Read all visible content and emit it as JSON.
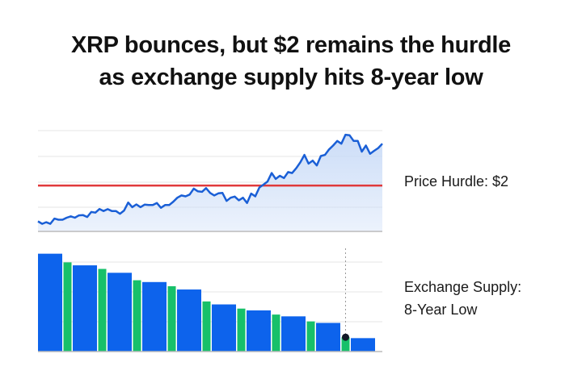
{
  "title_lines": [
    "XRP bounces, but $2 remains the hurdle",
    "as exchange supply hits 8-year low"
  ],
  "labels": {
    "price": "Price Hurdle: $2",
    "supply_line1": "Exchange Supply:",
    "supply_line2": "8-Year Low"
  },
  "colors": {
    "line": "#1a5fd6",
    "area": "#c9dbf7",
    "hurdle": "#e0393b",
    "bar_blue": "#0d63ec",
    "bar_green": "#17c06a",
    "marker": "#111827",
    "grid": "#e6e6e6"
  },
  "chart_data": [
    {
      "type": "line",
      "title": "",
      "xlabel": "",
      "ylabel": "",
      "ylim": [
        0,
        4.4
      ],
      "grid": true,
      "hurdle": 2,
      "values": [
        0.44,
        0.33,
        0.4,
        0.33,
        0.56,
        0.51,
        0.51,
        0.6,
        0.66,
        0.6,
        0.7,
        0.71,
        0.63,
        0.85,
        0.82,
        0.98,
        0.89,
        0.97,
        0.89,
        0.89,
        0.77,
        0.91,
        1.26,
        1.06,
        1.18,
        1.06,
        1.17,
        1.15,
        1.15,
        1.24,
        1.03,
        1.15,
        1.15,
        1.3,
        1.47,
        1.57,
        1.53,
        1.61,
        1.87,
        1.75,
        1.73,
        1.89,
        1.68,
        1.57,
        1.66,
        1.68,
        1.33,
        1.47,
        1.52,
        1.36,
        1.47,
        1.24,
        1.65,
        1.53,
        1.92,
        2.04,
        2.18,
        2.55,
        2.29,
        2.43,
        2.33,
        2.59,
        2.55,
        2.76,
        3.02,
        3.34,
        2.96,
        3.09,
        2.88,
        3.29,
        3.34,
        3.58,
        3.75,
        3.95,
        3.83,
        4.22,
        4.2,
        3.95,
        3.95,
        3.48,
        3.75,
        3.39,
        3.52,
        3.64,
        3.83
      ]
    },
    {
      "type": "bar",
      "title": "",
      "xlabel": "",
      "ylabel": "",
      "ylim": [
        0,
        3.3
      ],
      "grid": true,
      "blue_values": [
        3.28,
        2.89,
        2.64,
        2.33,
        2.08,
        1.58,
        1.38,
        1.18,
        0.96,
        0.45
      ],
      "green_values": [
        2.99,
        2.77,
        2.39,
        2.19,
        1.68,
        1.44,
        1.24,
        1.01,
        0.48
      ],
      "marker_on_green_index": 8
    }
  ]
}
